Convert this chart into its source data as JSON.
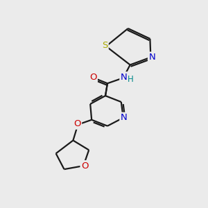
{
  "bg_color": "#ebebeb",
  "bond_color": "#1a1a1a",
  "atom_colors": {
    "N": "#0000cc",
    "O": "#cc0000",
    "S": "#aaaa00",
    "H": "#008888",
    "C": "#1a1a1a"
  }
}
